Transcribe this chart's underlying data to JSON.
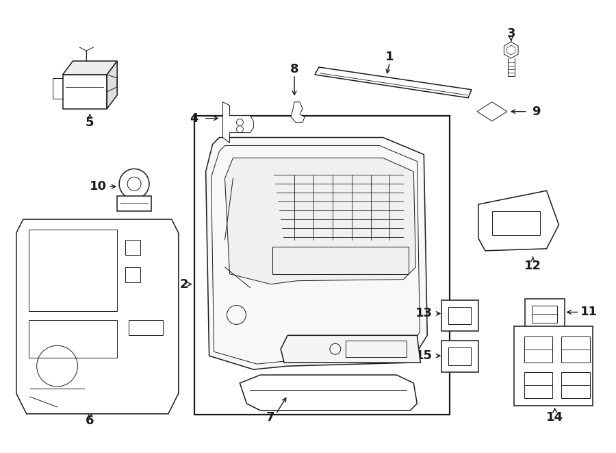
{
  "bg_color": "#ffffff",
  "line_color": "#1a1a1a",
  "fig_width": 9.0,
  "fig_height": 6.61,
  "dpi": 100,
  "lw_main": 1.1,
  "lw_thin": 0.7,
  "lw_thick": 1.6,
  "label_fontsize": 13,
  "label_fontweight": "bold"
}
